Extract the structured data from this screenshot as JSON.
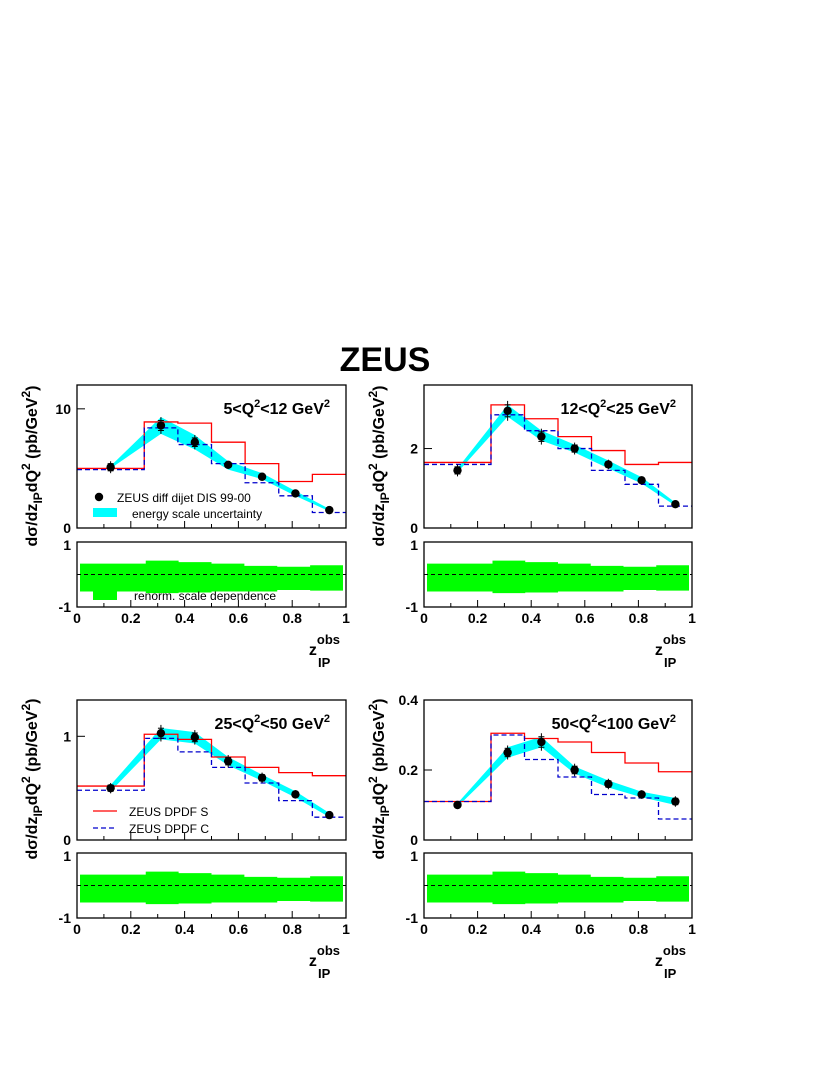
{
  "figure": {
    "title": "ZEUS",
    "ylabel_main": "dσ/dz",
    "ylabel_sub1": "IP",
    "ylabel_mid": "dQ",
    "ylabel_sup": "2",
    "ylabel_unit": " (pb/GeV",
    "ylabel_unit_sup": "2",
    "ylabel_close": ")",
    "xlabel_main": "z",
    "xlabel_sup": "obs",
    "xlabel_sub": "IP",
    "x_ticks": [
      "0",
      "0.2",
      "0.4",
      "0.6",
      "0.8",
      "1"
    ],
    "ratio_ticks": [
      "1",
      "-1"
    ],
    "legend": {
      "data": "ZEUS diff dijet DIS 99-00",
      "band": "energy scale uncertainty",
      "renorm": "renorm. scale dependence",
      "dpdf_s": "ZEUS DPDF S",
      "dpdf_c": "ZEUS DPDF C"
    },
    "colors": {
      "data": "#000000",
      "band": "#00ffff",
      "renorm": "#00ff00",
      "dpdf_s": "#ff0000",
      "dpdf_c": "#0000cc"
    }
  },
  "chart_data": [
    {
      "type": "line",
      "label_pre": "5<Q",
      "label_sup1": "2",
      "label_mid": "<12 GeV",
      "label_sup2": "2",
      "ylim": [
        0,
        12
      ],
      "y_ticks": [
        {
          "v": 0,
          "t": "0"
        },
        {
          "v": 10,
          "t": "10"
        }
      ],
      "x": [
        0.125,
        0.312,
        0.438,
        0.562,
        0.688,
        0.812,
        0.938
      ],
      "data": [
        5.1,
        8.6,
        7.2,
        5.3,
        4.3,
        2.9,
        1.5
      ],
      "err": [
        0.5,
        0.7,
        0.6,
        0.3,
        0.3,
        0.3,
        0.2
      ],
      "band_lo": [
        5.0,
        7.9,
        6.6,
        4.9,
        4.1,
        2.7,
        1.4
      ],
      "band_hi": [
        5.2,
        9.3,
        7.8,
        5.6,
        4.6,
        3.1,
        1.6
      ],
      "bin_edges": [
        0,
        0.25,
        0.375,
        0.5,
        0.625,
        0.75,
        0.875,
        1.0
      ],
      "dpdf_s": [
        5.0,
        8.9,
        8.8,
        7.2,
        5.4,
        3.9,
        4.5
      ],
      "dpdf_c": [
        4.9,
        8.4,
        7.0,
        5.4,
        3.8,
        2.7,
        1.3
      ],
      "ratio_lo": [
        -0.55,
        -0.6,
        -0.58,
        -0.55,
        -0.55,
        -0.5,
        -0.52
      ],
      "ratio_hi": [
        0.35,
        0.45,
        0.4,
        0.35,
        0.28,
        0.25,
        0.3
      ]
    },
    {
      "type": "line",
      "label_pre": "12<Q",
      "label_sup1": "2",
      "label_mid": "<25 GeV",
      "label_sup2": "2",
      "ylim": [
        0,
        3.6
      ],
      "y_ticks": [
        {
          "v": 0,
          "t": "0"
        },
        {
          "v": 2,
          "t": "2"
        }
      ],
      "x": [
        0.125,
        0.312,
        0.438,
        0.562,
        0.688,
        0.812,
        0.938
      ],
      "data": [
        1.45,
        2.95,
        2.3,
        2.0,
        1.6,
        1.2,
        0.6
      ],
      "err": [
        0.15,
        0.25,
        0.2,
        0.15,
        0.12,
        0.1,
        0.05
      ],
      "band_lo": [
        1.4,
        2.8,
        2.2,
        1.9,
        1.5,
        1.12,
        0.56
      ],
      "band_hi": [
        1.5,
        3.1,
        2.45,
        2.1,
        1.7,
        1.28,
        0.64
      ],
      "bin_edges": [
        0,
        0.25,
        0.375,
        0.5,
        0.625,
        0.75,
        0.875,
        1.0
      ],
      "dpdf_s": [
        1.65,
        3.1,
        2.75,
        2.3,
        1.95,
        1.6,
        1.65
      ],
      "dpdf_c": [
        1.6,
        2.85,
        2.45,
        2.0,
        1.45,
        1.1,
        0.55
      ],
      "ratio_lo": [
        -0.55,
        -0.6,
        -0.58,
        -0.55,
        -0.55,
        -0.5,
        -0.52
      ],
      "ratio_hi": [
        0.35,
        0.45,
        0.4,
        0.35,
        0.28,
        0.25,
        0.3
      ]
    },
    {
      "type": "line",
      "label_pre": "25<Q",
      "label_sup1": "2",
      "label_mid": "<50 GeV",
      "label_sup2": "2",
      "ylim": [
        0,
        1.35
      ],
      "y_ticks": [
        {
          "v": 0,
          "t": "0"
        },
        {
          "v": 1,
          "t": "1"
        }
      ],
      "x": [
        0.125,
        0.312,
        0.438,
        0.562,
        0.688,
        0.812,
        0.938
      ],
      "data": [
        0.5,
        1.03,
        0.99,
        0.76,
        0.6,
        0.44,
        0.24
      ],
      "err": [
        0.05,
        0.08,
        0.07,
        0.06,
        0.05,
        0.04,
        0.02
      ],
      "band_lo": [
        0.47,
        0.97,
        0.93,
        0.72,
        0.57,
        0.41,
        0.22
      ],
      "band_hi": [
        0.53,
        1.08,
        1.04,
        0.8,
        0.63,
        0.47,
        0.26
      ],
      "bin_edges": [
        0,
        0.25,
        0.375,
        0.5,
        0.625,
        0.75,
        0.875,
        1.0
      ],
      "dpdf_s": [
        0.52,
        1.02,
        0.97,
        0.8,
        0.7,
        0.65,
        0.62
      ],
      "dpdf_c": [
        0.48,
        0.98,
        0.85,
        0.7,
        0.55,
        0.38,
        0.22
      ],
      "ratio_lo": [
        -0.55,
        -0.6,
        -0.58,
        -0.55,
        -0.55,
        -0.5,
        -0.52
      ],
      "ratio_hi": [
        0.35,
        0.45,
        0.4,
        0.35,
        0.28,
        0.25,
        0.3
      ]
    },
    {
      "type": "line",
      "label_pre": "50<Q",
      "label_sup1": "2",
      "label_mid": "<100 GeV",
      "label_sup2": "2",
      "ylim": [
        0,
        0.4
      ],
      "y_ticks": [
        {
          "v": 0,
          "t": "0"
        },
        {
          "v": 0.2,
          "t": "0.2"
        },
        {
          "v": 0.4,
          "t": "0.4"
        }
      ],
      "x": [
        0.125,
        0.312,
        0.438,
        0.562,
        0.688,
        0.812,
        0.938
      ],
      "data": [
        0.1,
        0.25,
        0.28,
        0.2,
        0.16,
        0.13,
        0.11
      ],
      "err": [
        0.008,
        0.02,
        0.025,
        0.018,
        0.015,
        0.012,
        0.015
      ],
      "band_lo": [
        0.095,
        0.235,
        0.265,
        0.19,
        0.15,
        0.122,
        0.1
      ],
      "band_hi": [
        0.105,
        0.265,
        0.295,
        0.21,
        0.17,
        0.138,
        0.12
      ],
      "bin_edges": [
        0,
        0.25,
        0.375,
        0.5,
        0.625,
        0.75,
        0.875,
        1.0
      ],
      "dpdf_s": [
        0.11,
        0.305,
        0.29,
        0.28,
        0.25,
        0.22,
        0.195
      ],
      "dpdf_c": [
        0.11,
        0.3,
        0.23,
        0.18,
        0.13,
        0.12,
        0.06
      ],
      "ratio_lo": [
        -0.55,
        -0.6,
        -0.58,
        -0.55,
        -0.55,
        -0.5,
        -0.52
      ],
      "ratio_hi": [
        0.35,
        0.45,
        0.4,
        0.35,
        0.28,
        0.25,
        0.3
      ]
    }
  ]
}
